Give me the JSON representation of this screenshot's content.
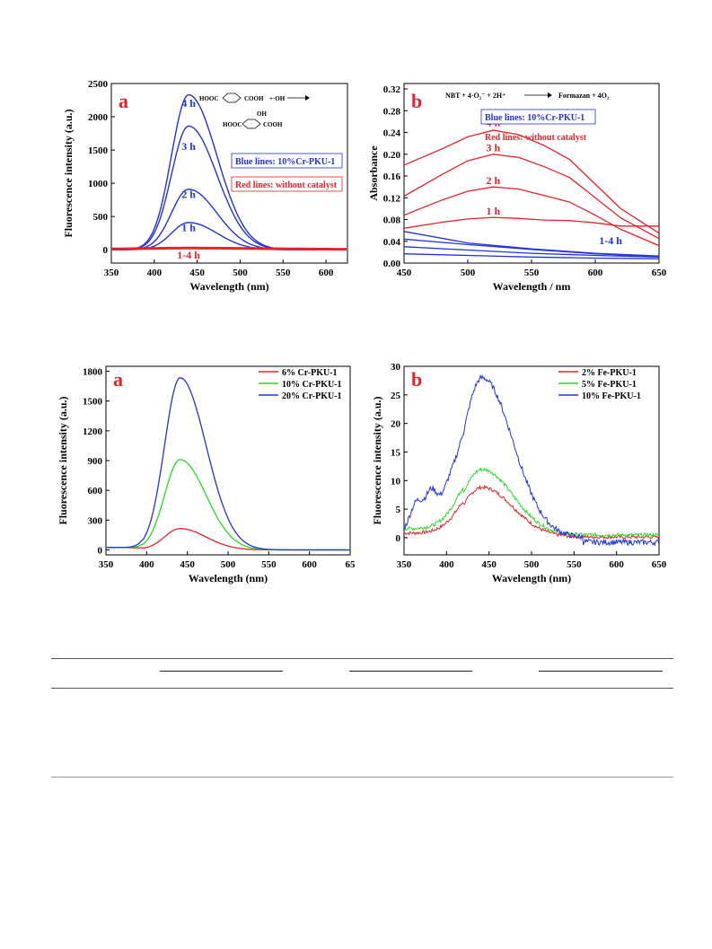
{
  "figures": {
    "top_left": {
      "letter": "a",
      "reaction": {
        "reactant": "HOOC",
        "reactant2": "COOH",
        "reagent": "+·OH",
        "product1": "OH",
        "product2": "HOOC",
        "product3": "COOH"
      },
      "legend": [
        "Blue lines: 10%Cr-PKU-1",
        "Red lines:  without catalyst"
      ],
      "time_labels": [
        "4 h",
        "3 h",
        "2 h",
        "1 h"
      ],
      "red_label": "1-4 h",
      "blue_color": "#2233dd",
      "red_color": "#e8222a"
    },
    "top_right": {
      "letter": "b",
      "reaction": "NBT + 4·O₂⁻ + 2H⁺",
      "reaction_product": "Formazan + 4O₂",
      "legend": [
        "Blue lines: 10%Cr-PKU-1",
        "Red lines:  without catalyst"
      ],
      "time_labels": [
        "4 h",
        "3 h",
        "2 h",
        "1 h"
      ],
      "blue_label": "1-4 h"
    },
    "bottom_left": {
      "letter": "a"
    },
    "bottom_right": {
      "letter": "b"
    }
  },
  "chart_data": [
    {
      "type": "line",
      "xlabel": "Wavelength (nm)",
      "ylabel": "Fluorescence intensity (a.u.)",
      "xlim": [
        350,
        625
      ],
      "ylim": [
        -200,
        2500
      ],
      "xticks": [
        350,
        400,
        450,
        500,
        550,
        600
      ],
      "yticks": [
        0,
        500,
        1000,
        1500,
        2000,
        2500
      ],
      "peak_x": 440,
      "series": [
        {
          "name": "4 h",
          "group": "blue",
          "peak": 2330
        },
        {
          "name": "3 h",
          "group": "blue",
          "peak": 1860
        },
        {
          "name": "2 h",
          "group": "blue",
          "peak": 910
        },
        {
          "name": "1 h",
          "group": "blue",
          "peak": 410
        },
        {
          "name": "1-4 h",
          "group": "red",
          "peak": 20
        }
      ]
    },
    {
      "type": "line",
      "xlabel": "Wavelength / nm",
      "ylabel": "Absorbance",
      "xlim": [
        450,
        650
      ],
      "ylim": [
        0.0,
        0.33
      ],
      "xticks": [
        450,
        500,
        550,
        600,
        650
      ],
      "yticks": [
        "0.00",
        "0.04",
        "0.08",
        "0.12",
        "0.16",
        "0.20",
        "0.24",
        "0.28",
        "0.32"
      ],
      "series": [
        {
          "name": "4 h",
          "group": "red",
          "x": [
            450,
            480,
            500,
            520,
            540,
            560,
            580,
            600,
            620,
            650
          ],
          "y": [
            0.18,
            0.21,
            0.232,
            0.244,
            0.236,
            0.216,
            0.19,
            0.145,
            0.1,
            0.055
          ]
        },
        {
          "name": "3 h",
          "group": "red",
          "x": [
            450,
            480,
            500,
            520,
            540,
            560,
            580,
            600,
            620,
            650
          ],
          "y": [
            0.123,
            0.163,
            0.188,
            0.2,
            0.194,
            0.177,
            0.157,
            0.12,
            0.083,
            0.045
          ]
        },
        {
          "name": "2 h",
          "group": "red",
          "x": [
            450,
            480,
            500,
            520,
            540,
            560,
            580,
            600,
            620,
            650
          ],
          "y": [
            0.088,
            0.116,
            0.132,
            0.14,
            0.136,
            0.124,
            0.112,
            0.088,
            0.062,
            0.032
          ]
        },
        {
          "name": "1 h",
          "group": "red",
          "x": [
            450,
            480,
            500,
            520,
            540,
            560,
            580,
            600,
            620,
            650
          ],
          "y": [
            0.064,
            0.075,
            0.081,
            0.084,
            0.082,
            0.079,
            0.078,
            0.074,
            0.068,
            0.068
          ]
        },
        {
          "name": "1-4 h",
          "group": "blue",
          "x": [
            450,
            500,
            550,
            600,
            650
          ],
          "y": [
            0.058,
            0.037,
            0.026,
            0.018,
            0.013
          ]
        },
        {
          "group": "blue",
          "x": [
            450,
            500,
            550,
            600,
            650
          ],
          "y": [
            0.044,
            0.034,
            0.025,
            0.017,
            0.012
          ]
        },
        {
          "group": "blue",
          "x": [
            450,
            500,
            550,
            600,
            650
          ],
          "y": [
            0.03,
            0.024,
            0.018,
            0.014,
            0.011
          ]
        },
        {
          "group": "blue",
          "x": [
            450,
            500,
            550,
            600,
            650
          ],
          "y": [
            0.017,
            0.014,
            0.011,
            0.009,
            0.008
          ]
        }
      ]
    },
    {
      "type": "line",
      "xlabel": "Wavelength (nm)",
      "ylabel": "Fluorescence intensity (a.u.)",
      "xlim": [
        350,
        650
      ],
      "ylim": [
        -50,
        1850
      ],
      "xticks": [
        "350",
        "400",
        "450",
        "500",
        "550",
        "600",
        "65"
      ],
      "yticks": [
        0,
        300,
        600,
        900,
        1200,
        1500,
        1800
      ],
      "series": [
        {
          "name": "6% Cr-PKU-1",
          "color": "#e8222a",
          "peak": 215
        },
        {
          "name": "10% Cr-PKU-1",
          "color": "#22dd22",
          "peak": 910
        },
        {
          "name": "20% Cr-PKU-1",
          "color": "#2233dd",
          "peak": 1735
        }
      ]
    },
    {
      "type": "line",
      "xlabel": "Wavelength (nm)",
      "ylabel": "Fluorescence intensity (a.u.)",
      "xlim": [
        350,
        650
      ],
      "ylim": [
        -3,
        30
      ],
      "xticks": [
        350,
        400,
        450,
        500,
        550,
        600,
        650
      ],
      "yticks": [
        0,
        5,
        10,
        15,
        20,
        25,
        30
      ],
      "series": [
        {
          "name": "2% Fe-PKU-1",
          "color": "#e8222a",
          "peak": 8.7
        },
        {
          "name": "5% Fe-PKU-1",
          "color": "#22dd22",
          "peak": 11.5
        },
        {
          "name": "10% Fe-PKU-1",
          "color": "#2233dd",
          "peak": 28.0
        }
      ]
    }
  ]
}
